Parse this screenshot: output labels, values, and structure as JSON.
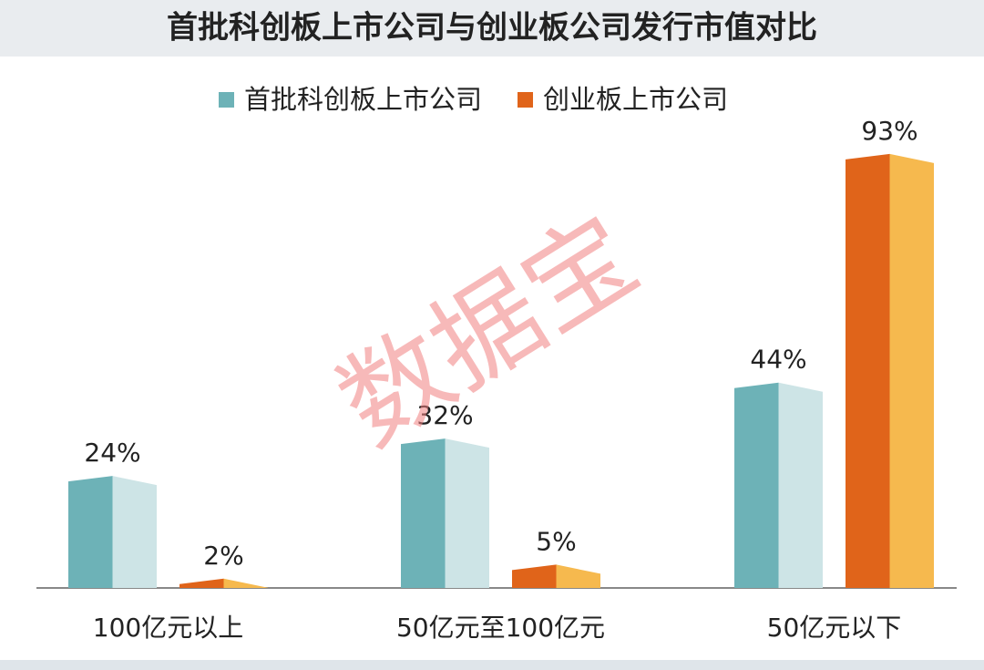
{
  "chart_data": {
    "type": "bar3d",
    "title": "首批科创板上市公司与创业板公司发行市值对比",
    "watermark": "数据宝",
    "categories": [
      "100亿元以上",
      "50亿元至100亿元",
      "50亿元以下"
    ],
    "series": [
      {
        "name": "首批科创板上市公司",
        "color": "#6db2b7",
        "side_color": "#cde4e6",
        "values": [
          24,
          32,
          44
        ],
        "value_labels": [
          "24%",
          "32%",
          "44%"
        ]
      },
      {
        "name": "创业板上市公司",
        "color": "#e0641a",
        "side_color": "#f6b94e",
        "values": [
          2,
          5,
          93
        ],
        "value_labels": [
          "2%",
          "5%",
          "93%"
        ]
      }
    ]
  }
}
